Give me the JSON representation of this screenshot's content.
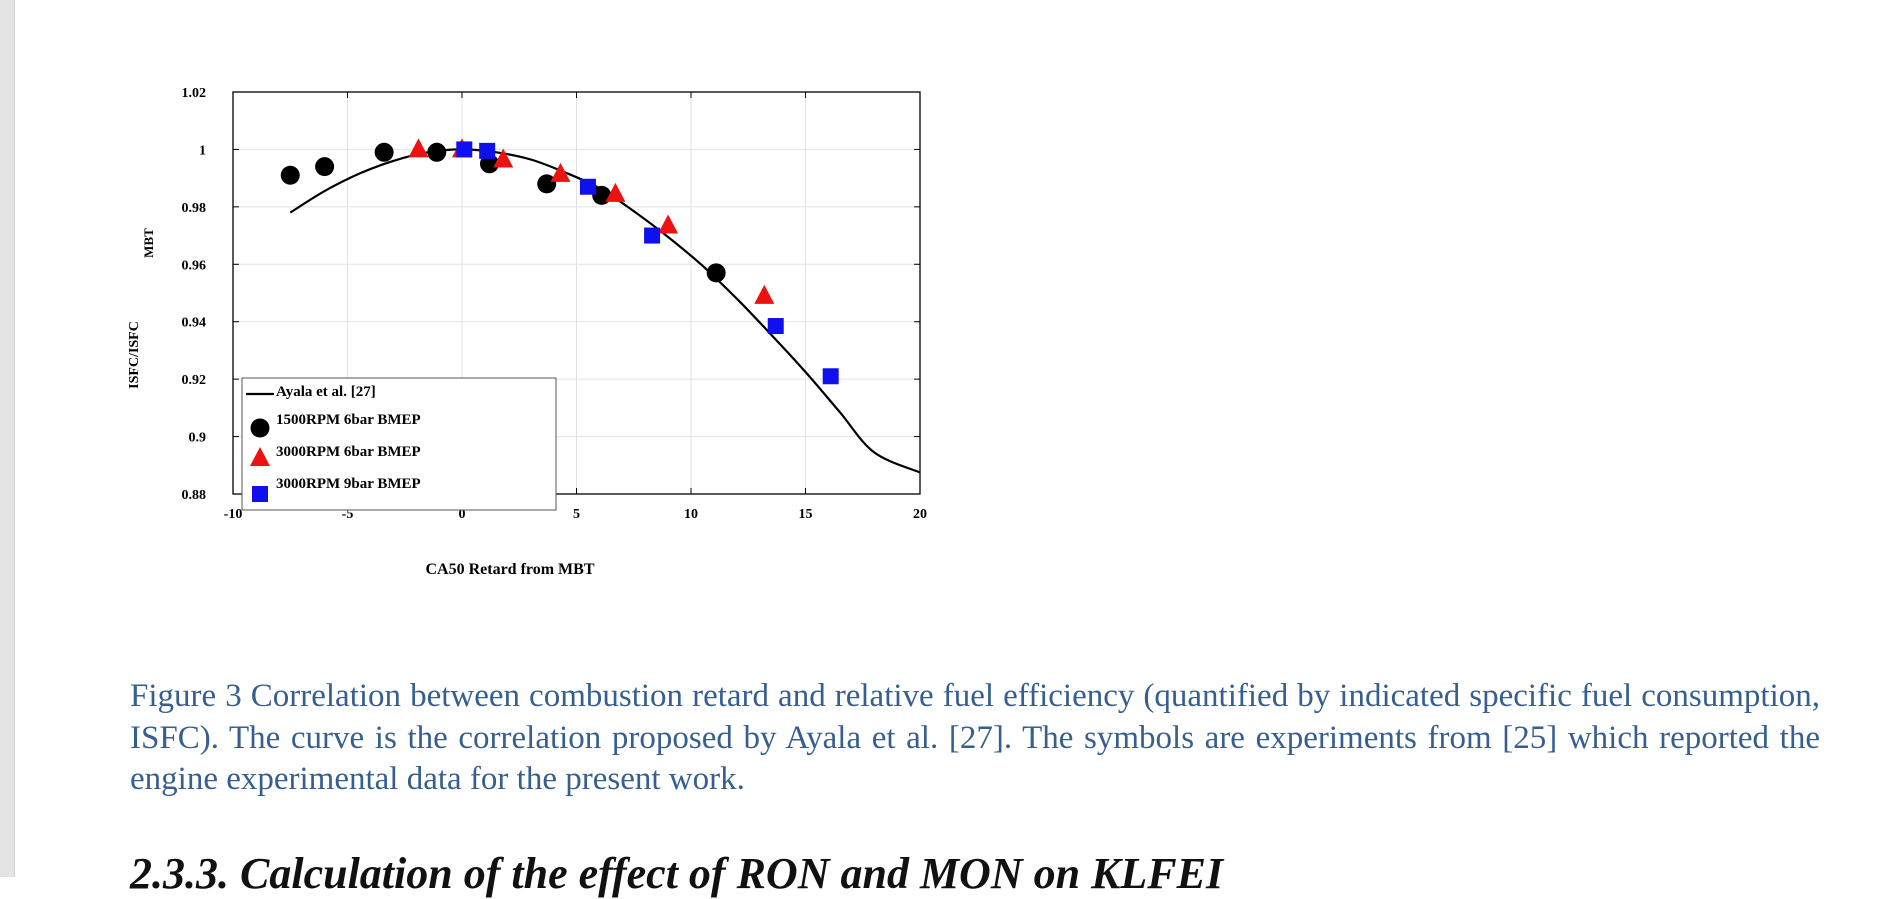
{
  "chart_data": {
    "type": "scatter",
    "title": "",
    "xlabel": "CA50 Retard from MBT",
    "ylabel_parts": [
      "ISFC/ISFC",
      "MBT"
    ],
    "xlim": [
      -10,
      20
    ],
    "ylim": [
      0.88,
      1.02
    ],
    "xticks": [
      -10,
      -5,
      0,
      5,
      10,
      15,
      20
    ],
    "xtick_labels": [
      "-10",
      "-5",
      "0",
      "5",
      "10",
      "15",
      "20"
    ],
    "yticks": [
      0.88,
      0.9,
      0.92,
      0.94,
      0.96,
      0.98,
      1,
      1.02
    ],
    "ytick_labels": [
      "0.88",
      "0.9",
      "0.92",
      "0.94",
      "0.96",
      "0.98",
      "1",
      "1.02"
    ],
    "grid": true,
    "legend_position": "bottom-left",
    "series": [
      {
        "name": "Ayala et al. [27]",
        "kind": "line",
        "color": "#000000",
        "x": [
          -7.5,
          -6,
          -4.5,
          -3,
          -1.5,
          0,
          1.5,
          3,
          4.5,
          6,
          7.5,
          9,
          10.5,
          12,
          13.5,
          15,
          16.5,
          18,
          20
        ],
        "y": [
          0.978,
          0.9855,
          0.9915,
          0.996,
          0.999,
          1.0,
          0.999,
          0.9965,
          0.992,
          0.9865,
          0.9785,
          0.9695,
          0.9595,
          0.948,
          0.9355,
          0.9225,
          0.9085,
          0.8945,
          0.8875
        ]
      },
      {
        "name": "1500RPM 6bar BMEP",
        "kind": "marker",
        "marker": "circle",
        "color": "#000000",
        "x": [
          -7.5,
          -6,
          -3.4,
          -1.1,
          1.2,
          3.7,
          6.1,
          11.1
        ],
        "y": [
          0.991,
          0.994,
          0.999,
          0.999,
          0.995,
          0.988,
          0.984,
          0.957
        ]
      },
      {
        "name": "3000RPM 6bar BMEP",
        "kind": "marker",
        "marker": "triangle",
        "color": "#ee1111",
        "x": [
          -1.9,
          0,
          1.8,
          4.3,
          6.7,
          9.0,
          13.2
        ],
        "y": [
          1.0,
          1.0,
          0.9965,
          0.9915,
          0.9845,
          0.9735,
          0.949
        ]
      },
      {
        "name": "3000RPM 9bar BMEP",
        "kind": "marker",
        "marker": "square",
        "color": "#1010ee",
        "x": [
          0.1,
          1.1,
          5.5,
          8.3,
          13.7,
          16.1
        ],
        "y": [
          1.0,
          0.9995,
          0.987,
          0.97,
          0.9385,
          0.921
        ]
      }
    ]
  },
  "caption": {
    "text": "Figure 3 Correlation between combustion retard and relative fuel efficiency (quantified by indicated specific fuel consumption, ISFC). The curve is the correlation proposed by Ayala et al. [27]. The symbols are experiments from [25] which reported the engine experimental data for the present work."
  },
  "next_section": {
    "heading": "2.3.3. Calculation of the effect of RON and MON on KLFEI"
  }
}
